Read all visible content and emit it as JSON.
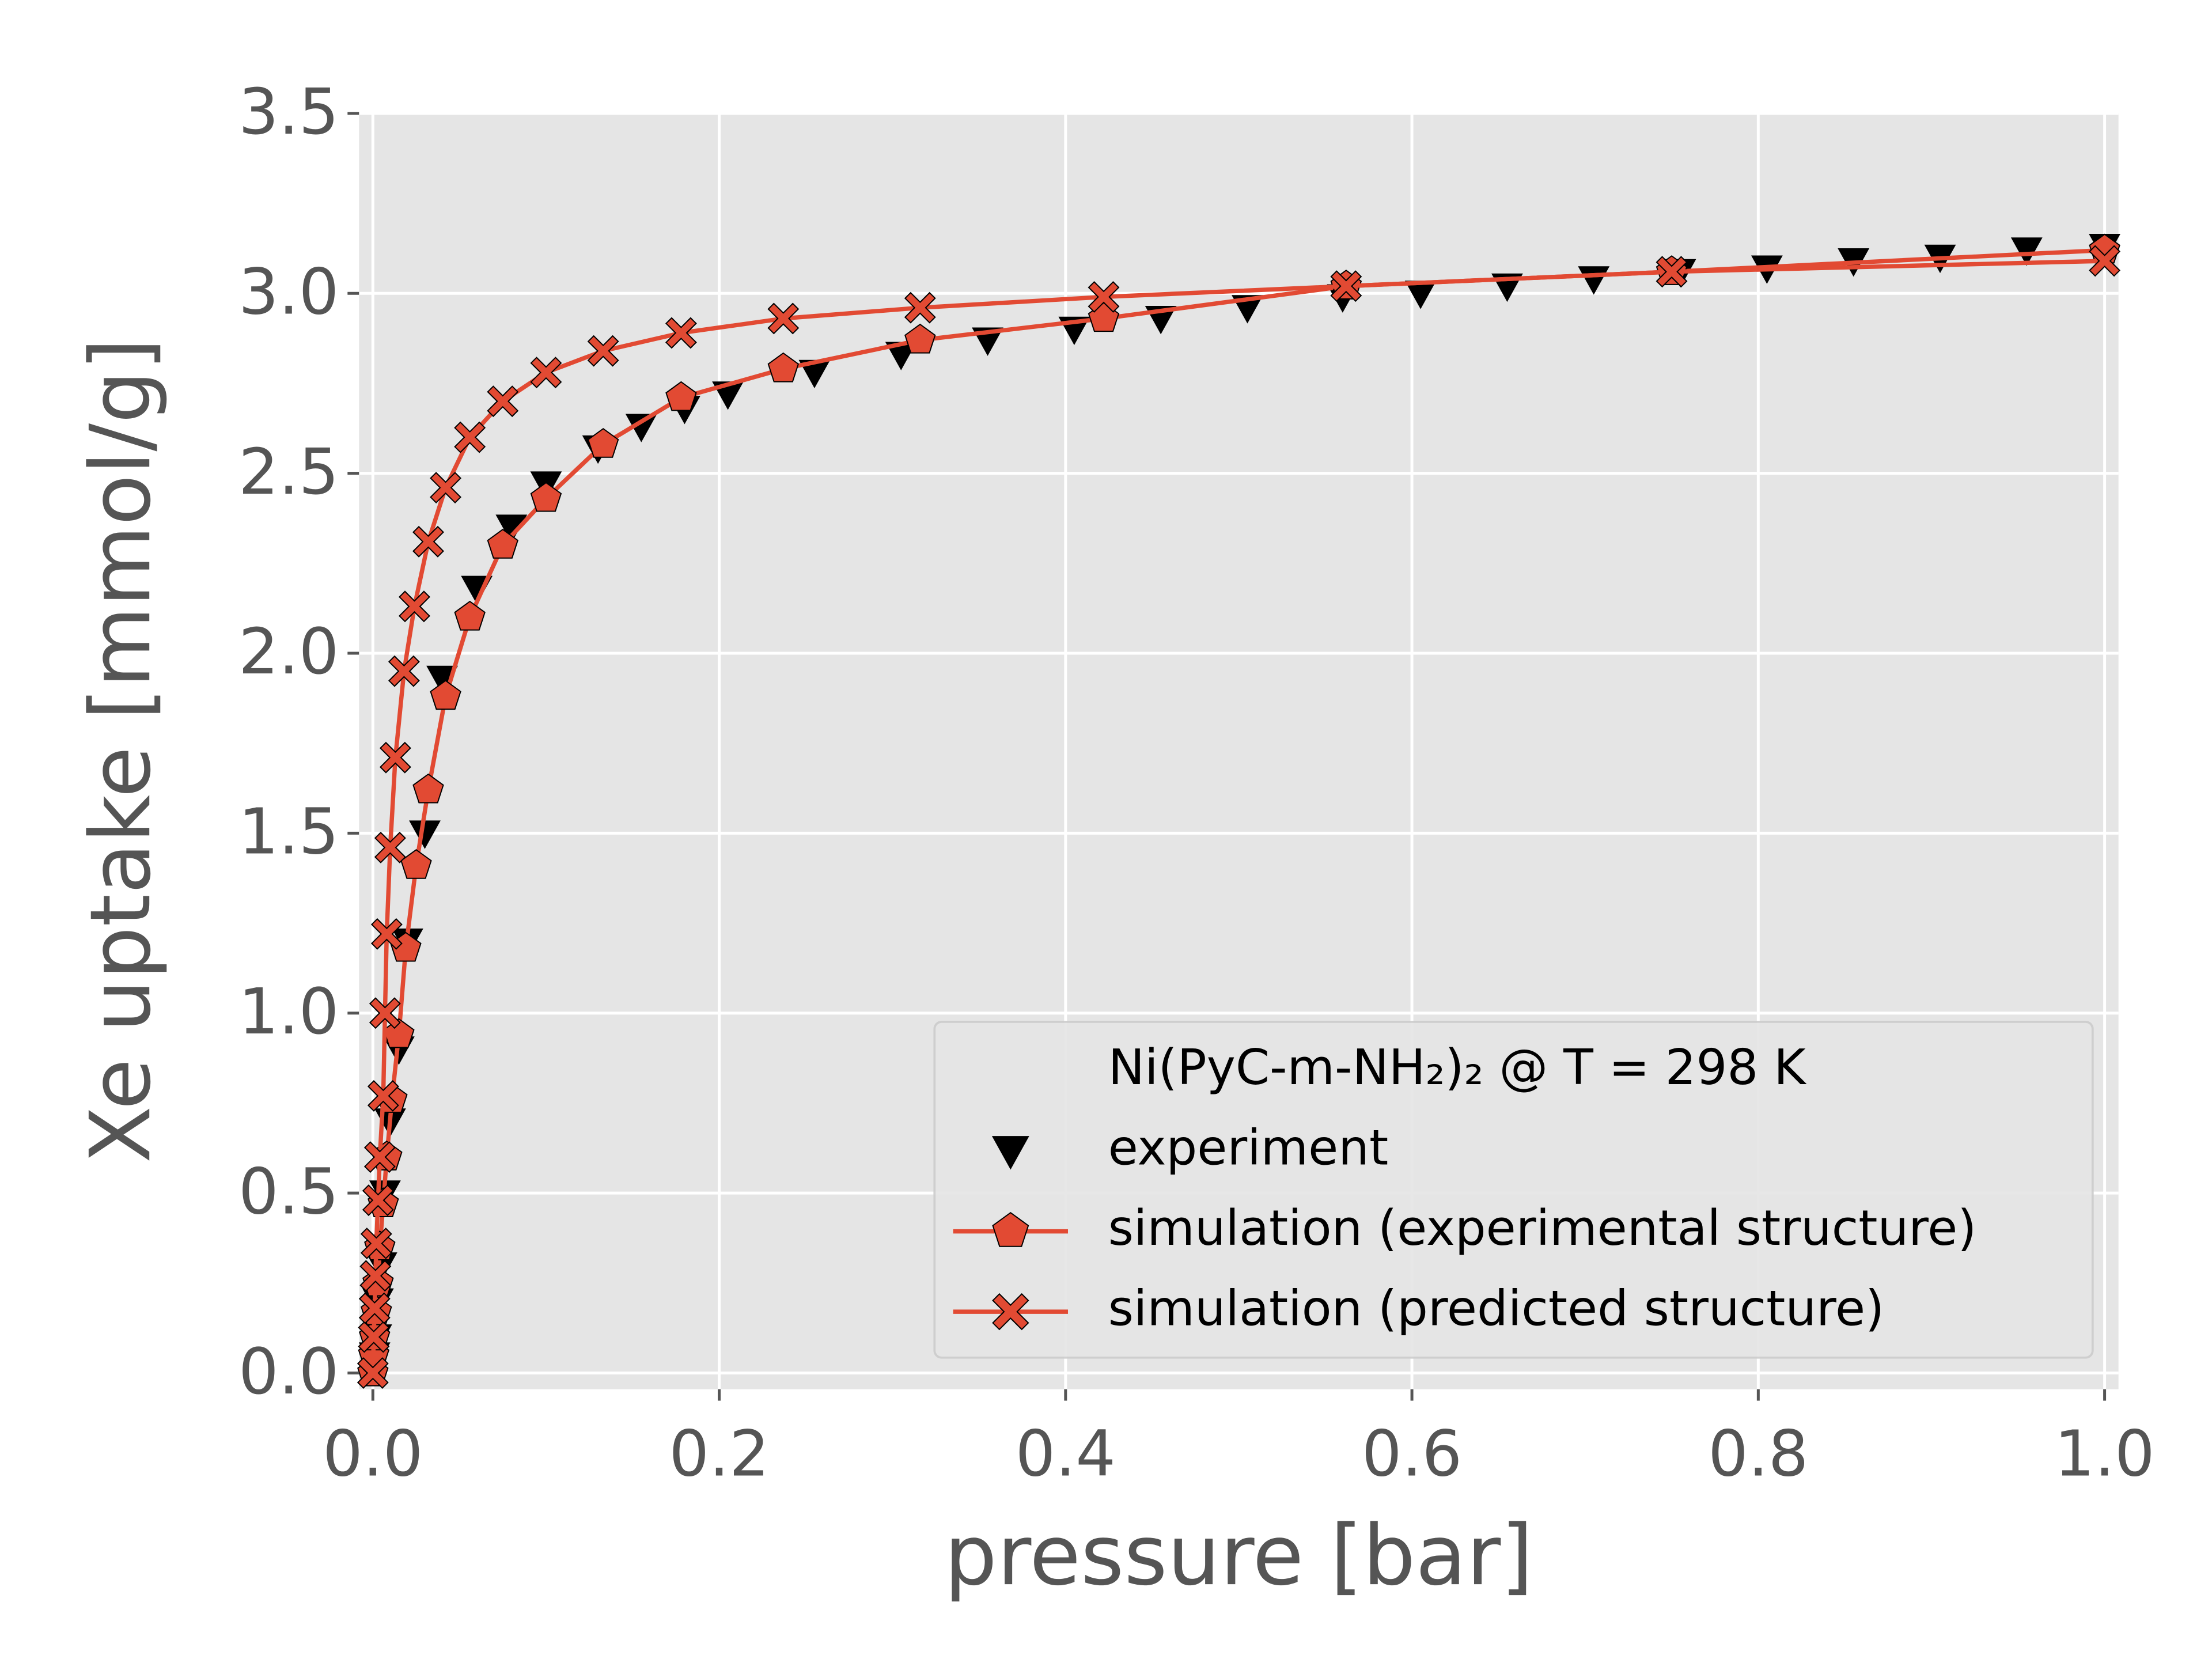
{
  "chart_data": {
    "type": "line",
    "xlabel": "pressure [bar]",
    "ylabel": "Xe uptake [mmol/g]",
    "legend_title": "Ni(PyC-m-NH₂)₂  @  T = 298 K",
    "legend_position": "lower right",
    "grid": true,
    "xlim": [
      -0.008,
      1.008
    ],
    "ylim": [
      -0.045,
      3.5
    ],
    "xticks": [
      {
        "value": 0,
        "label": "0.0"
      },
      {
        "value": 0.2,
        "label": "0.2"
      },
      {
        "value": 0.4,
        "label": "0.4"
      },
      {
        "value": 0.6,
        "label": "0.6"
      },
      {
        "value": 0.8,
        "label": "0.8"
      },
      {
        "value": 1,
        "label": "1.0"
      }
    ],
    "yticks": [
      {
        "value": 0,
        "label": "0.0"
      },
      {
        "value": 0.5,
        "label": "0.5"
      },
      {
        "value": 1,
        "label": "1.0"
      },
      {
        "value": 1.5,
        "label": "1.5"
      },
      {
        "value": 2,
        "label": "2.0"
      },
      {
        "value": 2.5,
        "label": "2.5"
      },
      {
        "value": 3,
        "label": "3.0"
      },
      {
        "value": 3.5,
        "label": "3.5"
      }
    ],
    "series": [
      {
        "name": "experiment",
        "color": "#000000",
        "marker": "triangle-down",
        "line": false,
        "x": [
          0.001,
          0.002,
          0.003,
          0.005,
          0.007,
          0.01,
          0.015,
          0.02,
          0.03,
          0.04,
          0.06,
          0.08,
          0.1,
          0.13,
          0.155,
          0.18,
          0.205,
          0.255,
          0.305,
          0.355,
          0.405,
          0.455,
          0.505,
          0.56,
          0.605,
          0.655,
          0.705,
          0.755,
          0.805,
          0.855,
          0.905,
          0.955,
          1.0
        ],
        "values": [
          0.05,
          0.1,
          0.2,
          0.3,
          0.5,
          0.7,
          0.9,
          1.2,
          1.5,
          1.93,
          2.18,
          2.35,
          2.47,
          2.57,
          2.63,
          2.68,
          2.72,
          2.78,
          2.83,
          2.87,
          2.9,
          2.93,
          2.96,
          2.99,
          3.0,
          3.02,
          3.04,
          3.06,
          3.07,
          3.09,
          3.1,
          3.12,
          3.13
        ]
      },
      {
        "name": "simulation (experimental structure)",
        "color": "#e24a33",
        "marker": "pentagon",
        "line": true,
        "x": [
          0,
          0.0005,
          0.001,
          0.002,
          0.003,
          0.004,
          0.006,
          0.008,
          0.011,
          0.015,
          0.019,
          0.025,
          0.032,
          0.042,
          0.056,
          0.075,
          0.1,
          0.133,
          0.178,
          0.237,
          0.316,
          0.422,
          0.562,
          0.75,
          1.0
        ],
        "values": [
          0,
          0.05,
          0.1,
          0.17,
          0.25,
          0.35,
          0.47,
          0.6,
          0.76,
          0.94,
          1.18,
          1.41,
          1.62,
          1.88,
          2.1,
          2.3,
          2.43,
          2.58,
          2.71,
          2.79,
          2.87,
          2.93,
          3.02,
          3.06,
          3.12
        ]
      },
      {
        "name": "simulation (predicted structure)",
        "color": "#e24a33",
        "marker": "x",
        "line": true,
        "x": [
          0,
          0.0005,
          0.001,
          0.0015,
          0.002,
          0.003,
          0.004,
          0.006,
          0.007,
          0.008,
          0.01,
          0.013,
          0.018,
          0.024,
          0.032,
          0.042,
          0.056,
          0.075,
          0.1,
          0.133,
          0.178,
          0.237,
          0.316,
          0.422,
          0.562,
          0.75,
          1.0
        ],
        "values": [
          0,
          0.1,
          0.18,
          0.27,
          0.36,
          0.48,
          0.6,
          0.77,
          1.0,
          1.22,
          1.46,
          1.71,
          1.95,
          2.13,
          2.31,
          2.46,
          2.6,
          2.7,
          2.78,
          2.84,
          2.89,
          2.93,
          2.96,
          2.99,
          3.02,
          3.06,
          3.09
        ]
      }
    ]
  }
}
